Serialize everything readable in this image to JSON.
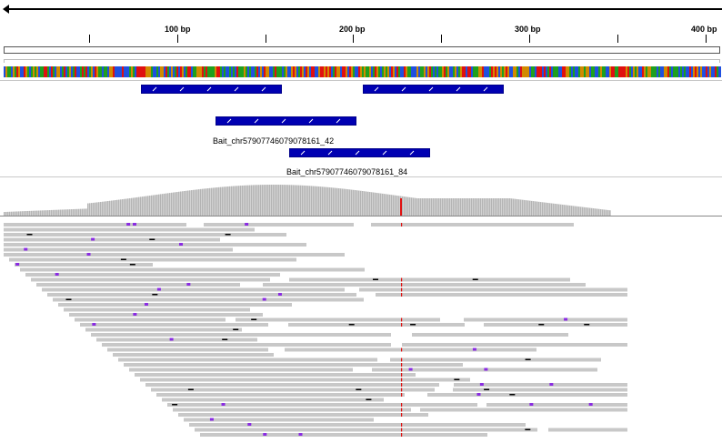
{
  "ruler": {
    "ticks": [
      {
        "label": "100 bp"
      },
      {
        "label": "200 bp"
      },
      {
        "label": "300 bp"
      },
      {
        "label": "400 bp"
      }
    ]
  },
  "features": {
    "bait_42": {
      "label": "Bait_chr57907746079078161_42"
    },
    "bait_84": {
      "label": "Bait_chr57907746079078161_84"
    }
  },
  "colors": {
    "feature": "#0000b2",
    "coverage": "#b4b4b4",
    "read": "#c8c8c8",
    "mismatch": "#e01010",
    "insertion": "#8a2be2",
    "deletion": "#000000",
    "base_a": "#1ea01e",
    "base_c": "#2050e0",
    "base_g": "#d18a00",
    "base_t": "#e01010"
  },
  "track_icons": [
    "gene-track-icon",
    "coverage-track-icon",
    "alignment-track-icon"
  ]
}
